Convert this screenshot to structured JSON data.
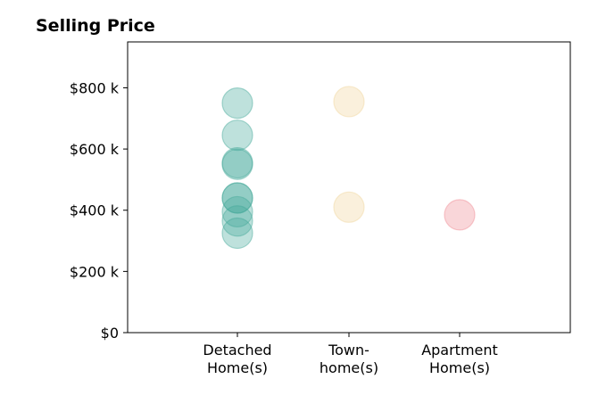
{
  "chart_data": {
    "type": "scatter",
    "title": "Selling Price",
    "categories": [
      [
        "Detached",
        "Home(s)"
      ],
      [
        "Town-",
        "home(s)"
      ],
      [
        "Apartment",
        "Home(s)"
      ]
    ],
    "y_ticks": [
      0,
      200,
      400,
      600,
      800
    ],
    "y_tick_labels": [
      "$0",
      "$200 k",
      "$400 k",
      "$600 k",
      "$800 k"
    ],
    "ylim": [
      0,
      950
    ],
    "grid": false,
    "colors": [
      "#45a89a",
      "#f0d59b",
      "#ef8a93"
    ],
    "series": [
      {
        "category": 0,
        "values": [
          750,
          645,
          555,
          550,
          440,
          440,
          395,
          365,
          325
        ]
      },
      {
        "category": 1,
        "values": [
          755,
          410
        ]
      },
      {
        "category": 2,
        "values": [
          385
        ]
      }
    ]
  }
}
